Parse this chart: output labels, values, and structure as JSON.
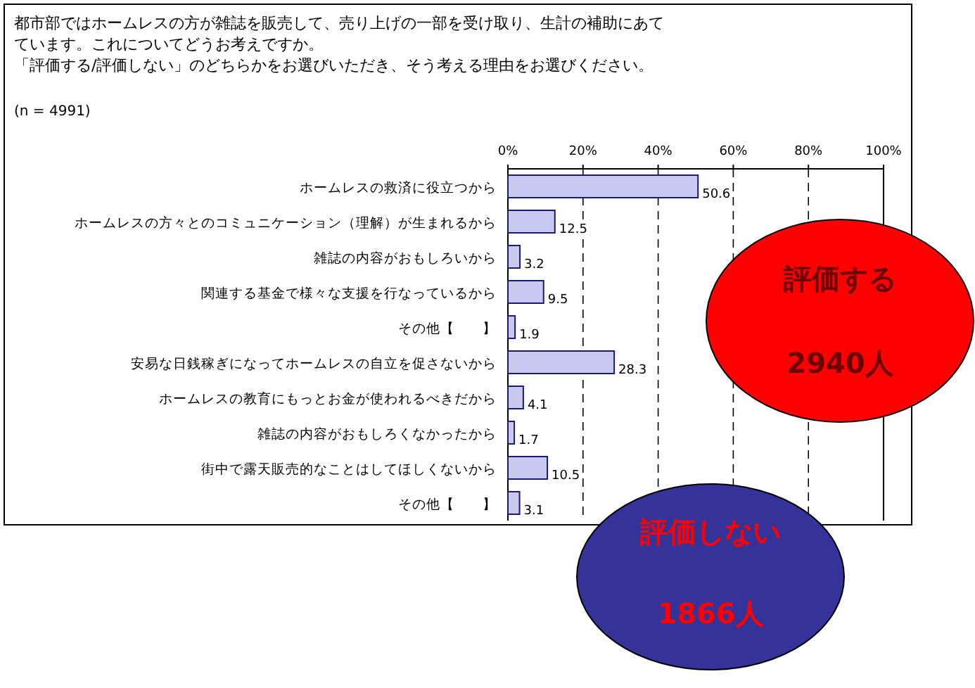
{
  "chart_data": {
    "type": "bar",
    "orientation": "horizontal",
    "title": "都市部ではホームレスの方が雑誌を販売して、売り上げの一部を受け取り、生計の補助にあてています。これについてどうお考えですか。",
    "subtitle": "「評価する/評価しない」のどちらかをお選びいただき、そう考える理由をお選びください。",
    "categories": [
      "ホームレスの救済に役立つから",
      "ホームレスの方々とのコミュニケーション（理解）が生まれるから",
      "雑誌の内容がおもしろいから",
      "関連する基金で様々な支援を行なっているから",
      "その他【　　】",
      "安易な日銭稼ぎになってホームレスの自立を促さないから",
      "ホームレスの教育にもっとお金が使われるべきだから",
      "雑誌の内容がおもしろくなかったから",
      "街中で露天販売的なことはしてほしくないから",
      "その他【　　】"
    ],
    "values": [
      50.6,
      12.5,
      3.2,
      9.5,
      1.9,
      28.3,
      4.1,
      1.7,
      10.5,
      3.1
    ],
    "color": "#c8c8f0",
    "data_labels": true,
    "xlim": [
      0,
      100
    ],
    "xticks": [
      {
        "value": 0,
        "label": "0%"
      },
      {
        "value": 20,
        "label": "20%"
      },
      {
        "value": 40,
        "label": "40%"
      },
      {
        "value": 60,
        "label": "60%"
      },
      {
        "value": 80,
        "label": "80%"
      },
      {
        "value": 100,
        "label": "100%"
      }
    ],
    "grid": "x",
    "annotations": [
      "(n = 4991)",
      "評価する",
      "2940人",
      "評価しない",
      "1866人"
    ]
  }
}
